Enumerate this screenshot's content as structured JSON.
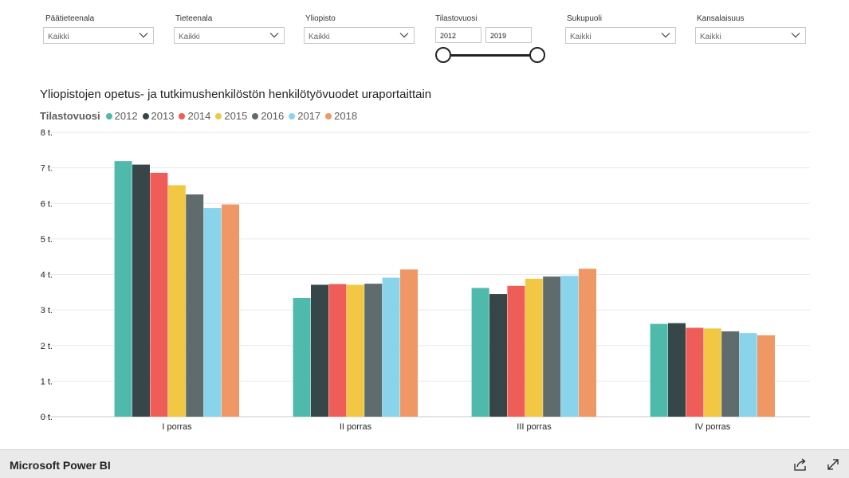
{
  "filters": {
    "paatieteenala": {
      "label": "Päätieteenala",
      "value": "Kaikki"
    },
    "tieteenala": {
      "label": "Tieteenala",
      "value": "Kaikki"
    },
    "yliopisto": {
      "label": "Yliopisto",
      "value": "Kaikki"
    },
    "tilastovuosi": {
      "label": "Tilastovuosi",
      "start": "2012",
      "end": "2019"
    },
    "sukupuoli": {
      "label": "Sukupuoli",
      "value": "Kaikki"
    },
    "kansalaisuus": {
      "label": "Kansalaisuus",
      "value": "Kaikki"
    }
  },
  "chart_data": {
    "type": "bar",
    "title": "Yliopistojen opetus- ja tutkimushenkilöstön henkilötyövuodet uraportaittain",
    "legend_title": "Tilastovuosi",
    "legend_position": "top-left",
    "categories": [
      "I porras",
      "II porras",
      "III porras",
      "IV porras"
    ],
    "ylim": [
      0,
      8000
    ],
    "yticks": [
      0,
      1000,
      2000,
      3000,
      4000,
      5000,
      6000,
      7000,
      8000
    ],
    "ytick_labels": [
      "0 t.",
      "1 t.",
      "2 t.",
      "3 t.",
      "4 t.",
      "5 t.",
      "6 t.",
      "7 t.",
      "8 t."
    ],
    "grid": true,
    "series": [
      {
        "name": "2012",
        "color": "#4fb9ab",
        "values": [
          7190,
          3340,
          3620,
          2610
        ]
      },
      {
        "name": "2013",
        "color": "#374649",
        "values": [
          7090,
          3710,
          3450,
          2630
        ]
      },
      {
        "name": "2014",
        "color": "#ee5d58",
        "values": [
          6860,
          3730,
          3680,
          2500
        ]
      },
      {
        "name": "2015",
        "color": "#f2c744",
        "values": [
          6510,
          3710,
          3880,
          2480
        ]
      },
      {
        "name": "2016",
        "color": "#5f6b6d",
        "values": [
          6250,
          3740,
          3940,
          2400
        ]
      },
      {
        "name": "2017",
        "color": "#8ad4eb",
        "values": [
          5870,
          3910,
          3960,
          2350
        ]
      },
      {
        "name": "2018",
        "color": "#f09766",
        "values": [
          5970,
          4140,
          4160,
          2290
        ]
      }
    ]
  },
  "footer": {
    "brand": "Microsoft Power BI",
    "share_icon": "share-icon",
    "fullscreen_icon": "fullscreen-icon"
  }
}
